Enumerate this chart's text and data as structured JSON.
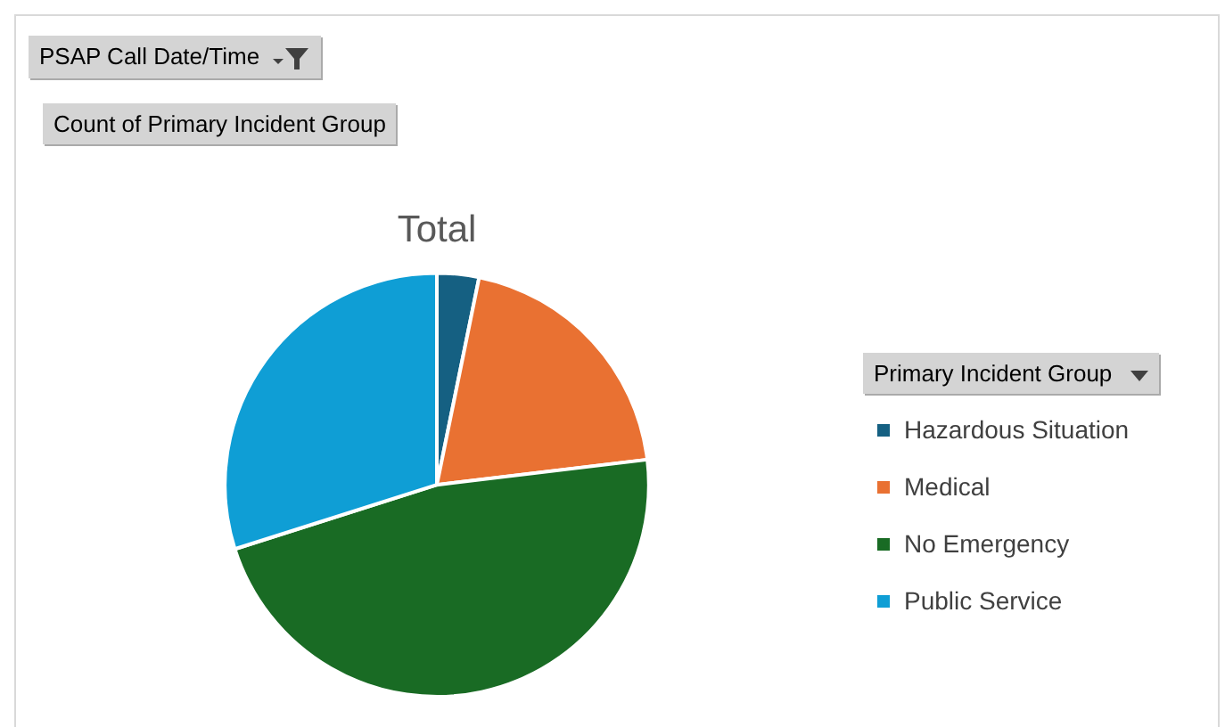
{
  "chart_data": {
    "type": "pie",
    "title": "Total",
    "categories": [
      "Hazardous Situation",
      "Medical",
      "No Emergency",
      "Public Service"
    ],
    "values": [
      3.2,
      19.9,
      47,
      29.9
    ],
    "colors": [
      "#156082",
      "#e97132",
      "#196b24",
      "#0f9ed5"
    ],
    "legend": "right",
    "legend_title": "Primary Incident Group",
    "annotations": [
      "PSAP Call Date/Time",
      "Count of Primary Incident Group"
    ]
  }
}
